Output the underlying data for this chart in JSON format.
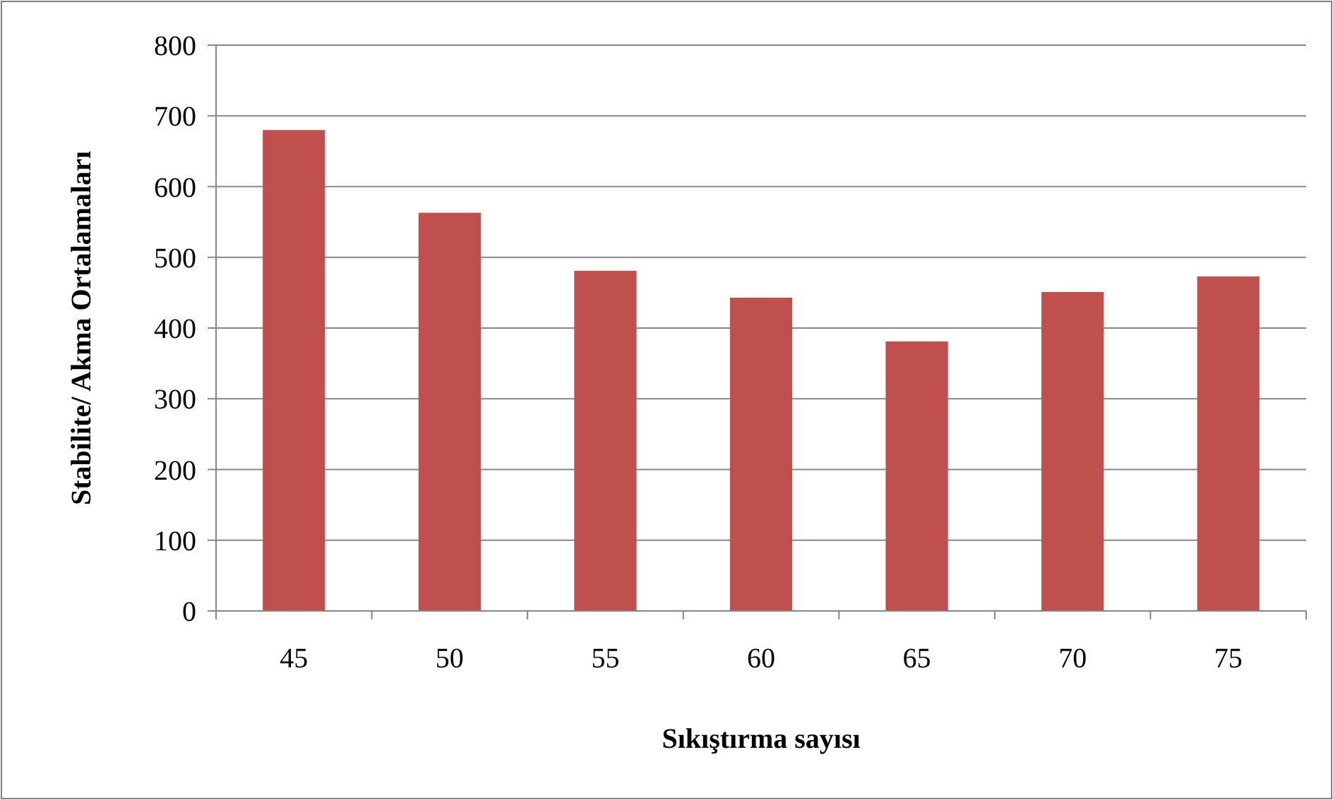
{
  "chart_data": {
    "type": "bar",
    "xlabel": "Sıkıştırma sayısı",
    "ylabel": "Stabilite/ Akma Ortalamaları",
    "categories": [
      "45",
      "50",
      "55",
      "60",
      "65",
      "70",
      "75"
    ],
    "values": [
      680,
      563,
      481,
      443,
      381,
      451,
      473
    ],
    "color": "#c0504d",
    "ylim": [
      0,
      800
    ],
    "yticks": [
      0,
      100,
      200,
      300,
      400,
      500,
      600,
      700,
      800
    ],
    "grid": "y"
  }
}
